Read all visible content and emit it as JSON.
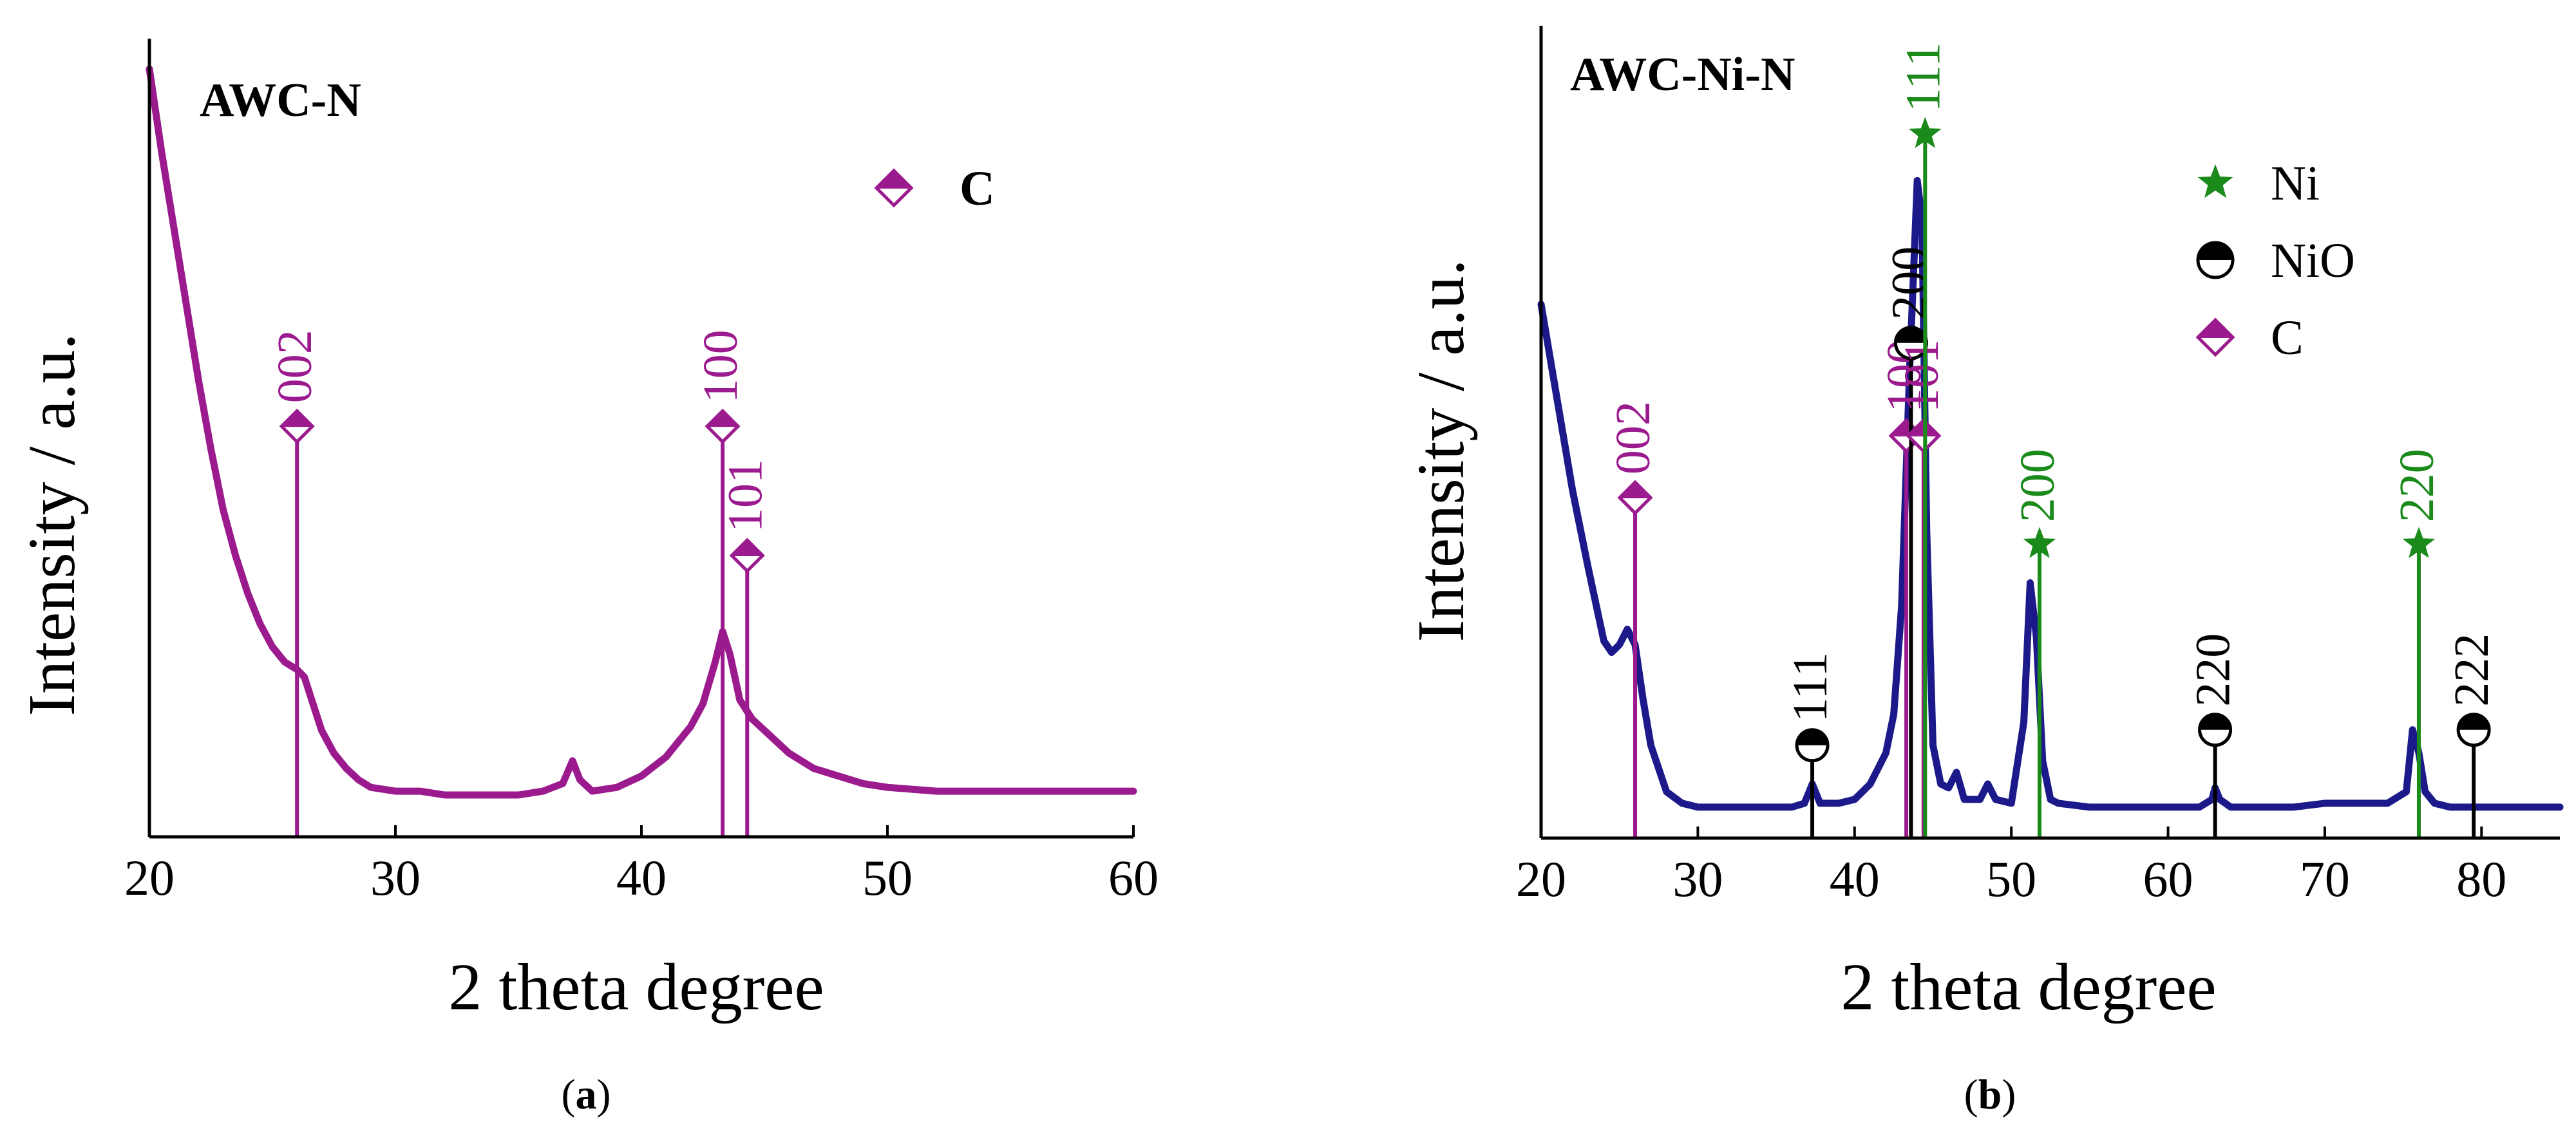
{
  "chart_data": [
    {
      "type": "line",
      "panel_label": "(a)",
      "panel_letter": "a",
      "panel_open": "(",
      "panel_close": ")",
      "sample_label": "AWC-N",
      "xlabel": "2 theta degree",
      "ylabel": "Intensity / a.u.",
      "xlim": [
        20,
        60
      ],
      "ylim": [
        0,
        105
      ],
      "xticks": [
        20,
        30,
        40,
        50,
        60
      ],
      "line_color": "#9b1a8e",
      "legend": [
        {
          "label": "C",
          "marker": "diamond-half",
          "color": "#9b1a8e"
        }
      ],
      "series": [
        {
          "name": "AWC-N",
          "x": [
            20.0,
            20.5,
            21.0,
            21.5,
            22.0,
            22.5,
            23.0,
            23.5,
            24.0,
            24.5,
            25.0,
            25.5,
            26.0,
            26.3,
            26.6,
            27.0,
            27.5,
            28.0,
            28.5,
            29.0,
            30.0,
            31.0,
            32.0,
            33.0,
            34.0,
            35.0,
            36.0,
            36.8,
            37.2,
            37.5,
            38.0,
            39.0,
            40.0,
            41.0,
            42.0,
            42.5,
            43.0,
            43.3,
            43.6,
            44.0,
            44.5,
            45.0,
            46.0,
            47.0,
            48.0,
            49.0,
            50.0,
            52.0,
            54.0,
            56.0,
            58.0,
            60.0
          ],
          "y": [
            101.0,
            90.0,
            80.0,
            70.0,
            60.0,
            51.0,
            43.0,
            37.0,
            32.0,
            28.0,
            25.0,
            23.0,
            22.0,
            21.0,
            18.0,
            14.0,
            11.0,
            9.0,
            7.5,
            6.5,
            6.0,
            6.0,
            5.5,
            5.5,
            5.5,
            5.5,
            6.0,
            7.0,
            10.0,
            7.5,
            6.0,
            6.5,
            8.0,
            10.5,
            14.5,
            17.5,
            23.0,
            27.0,
            24.0,
            18.0,
            15.5,
            14.0,
            11.0,
            9.0,
            8.0,
            7.0,
            6.5,
            6.0,
            6.0,
            6.0,
            6.0,
            6.0
          ]
        }
      ],
      "reference_lines": [
        {
          "phase": "C",
          "hkl": "002",
          "x": 26.0,
          "height": 54,
          "color": "#9b1a8e"
        },
        {
          "phase": "C",
          "hkl": "100",
          "x": 43.3,
          "height": 54,
          "color": "#9b1a8e"
        },
        {
          "phase": "C",
          "hkl": "101",
          "x": 44.3,
          "height": 37,
          "color": "#9b1a8e"
        }
      ]
    },
    {
      "type": "line",
      "panel_label": "(b)",
      "panel_letter": "b",
      "panel_open": "(",
      "panel_close": ")",
      "sample_label": "AWC-Ni-N",
      "xlabel": "2 theta degree",
      "ylabel": "Intensity / a.u.",
      "xlim": [
        20,
        85
      ],
      "ylim": [
        0,
        105
      ],
      "xticks": [
        20,
        30,
        40,
        50,
        60,
        70,
        80
      ],
      "line_color": "#1c1a8a",
      "legend": [
        {
          "label": "Ni",
          "marker": "star",
          "color": "#1a8a1a"
        },
        {
          "label": "NiO",
          "marker": "circle-half",
          "color": "#000000"
        },
        {
          "label": "C",
          "marker": "diamond-half",
          "color": "#9b1a8e"
        }
      ],
      "series": [
        {
          "name": "AWC-Ni-N",
          "x": [
            20.0,
            21.0,
            22.0,
            23.0,
            24.0,
            24.5,
            25.0,
            25.5,
            26.0,
            26.5,
            27.0,
            28.0,
            29.0,
            30.0,
            32.0,
            34.0,
            36.0,
            36.8,
            37.3,
            37.8,
            39.0,
            40.0,
            41.0,
            42.0,
            42.5,
            43.0,
            43.5,
            44.0,
            44.3,
            44.6,
            45.0,
            45.5,
            46.0,
            46.5,
            47.0,
            48.0,
            48.5,
            49.0,
            50.0,
            50.8,
            51.2,
            51.6,
            52.0,
            52.5,
            53.0,
            55.0,
            58.0,
            60.0,
            62.0,
            62.8,
            63.0,
            63.3,
            64.0,
            66.0,
            68.0,
            70.0,
            72.0,
            74.0,
            75.2,
            75.6,
            76.0,
            76.4,
            77.0,
            78.0,
            80.0,
            82.0,
            85.0
          ],
          "y": [
            69.0,
            57.0,
            45.0,
            35.0,
            25.5,
            24.0,
            25.0,
            27.0,
            25.0,
            18.0,
            12.0,
            6.0,
            4.5,
            4.0,
            4.0,
            4.0,
            4.0,
            4.5,
            7.0,
            4.5,
            4.5,
            5.0,
            7.0,
            11.0,
            16.0,
            30.0,
            60.0,
            85.0,
            80.0,
            40.0,
            12.0,
            7.0,
            6.5,
            8.5,
            5.0,
            5.0,
            7.0,
            5.0,
            4.5,
            15.0,
            33.0,
            26.0,
            10.0,
            5.0,
            4.5,
            4.0,
            4.0,
            4.0,
            4.0,
            5.0,
            6.5,
            5.0,
            4.0,
            4.0,
            4.0,
            4.5,
            4.5,
            4.5,
            6.0,
            14.0,
            11.0,
            6.0,
            4.5,
            4.0,
            4.0,
            4.0,
            4.0
          ]
        }
      ],
      "reference_lines": [
        {
          "phase": "C",
          "hkl": "002",
          "x": 26.0,
          "height": 44,
          "color": "#9b1a8e"
        },
        {
          "phase": "NiO",
          "hkl": "111",
          "x": 37.3,
          "height": 12,
          "color": "#000000"
        },
        {
          "phase": "C",
          "hkl": "100",
          "x": 43.3,
          "height": 52,
          "color": "#9b1a8e"
        },
        {
          "phase": "NiO",
          "hkl": "200",
          "x": 43.6,
          "height": 64,
          "color": "#000000"
        },
        {
          "phase": "C",
          "hkl": "101",
          "x": 44.4,
          "height": 52,
          "color": "#9b1a8e"
        },
        {
          "phase": "Ni",
          "hkl": "111",
          "x": 44.5,
          "height": 91,
          "color": "#1a8a1a"
        },
        {
          "phase": "Ni",
          "hkl": "200",
          "x": 51.8,
          "height": 38,
          "color": "#1a8a1a"
        },
        {
          "phase": "NiO",
          "hkl": "220",
          "x": 63.0,
          "height": 14,
          "color": "#000000"
        },
        {
          "phase": "Ni",
          "hkl": "220",
          "x": 76.0,
          "height": 38,
          "color": "#1a8a1a"
        },
        {
          "phase": "NiO",
          "hkl": "222",
          "x": 79.5,
          "height": 14,
          "color": "#000000"
        }
      ]
    }
  ]
}
